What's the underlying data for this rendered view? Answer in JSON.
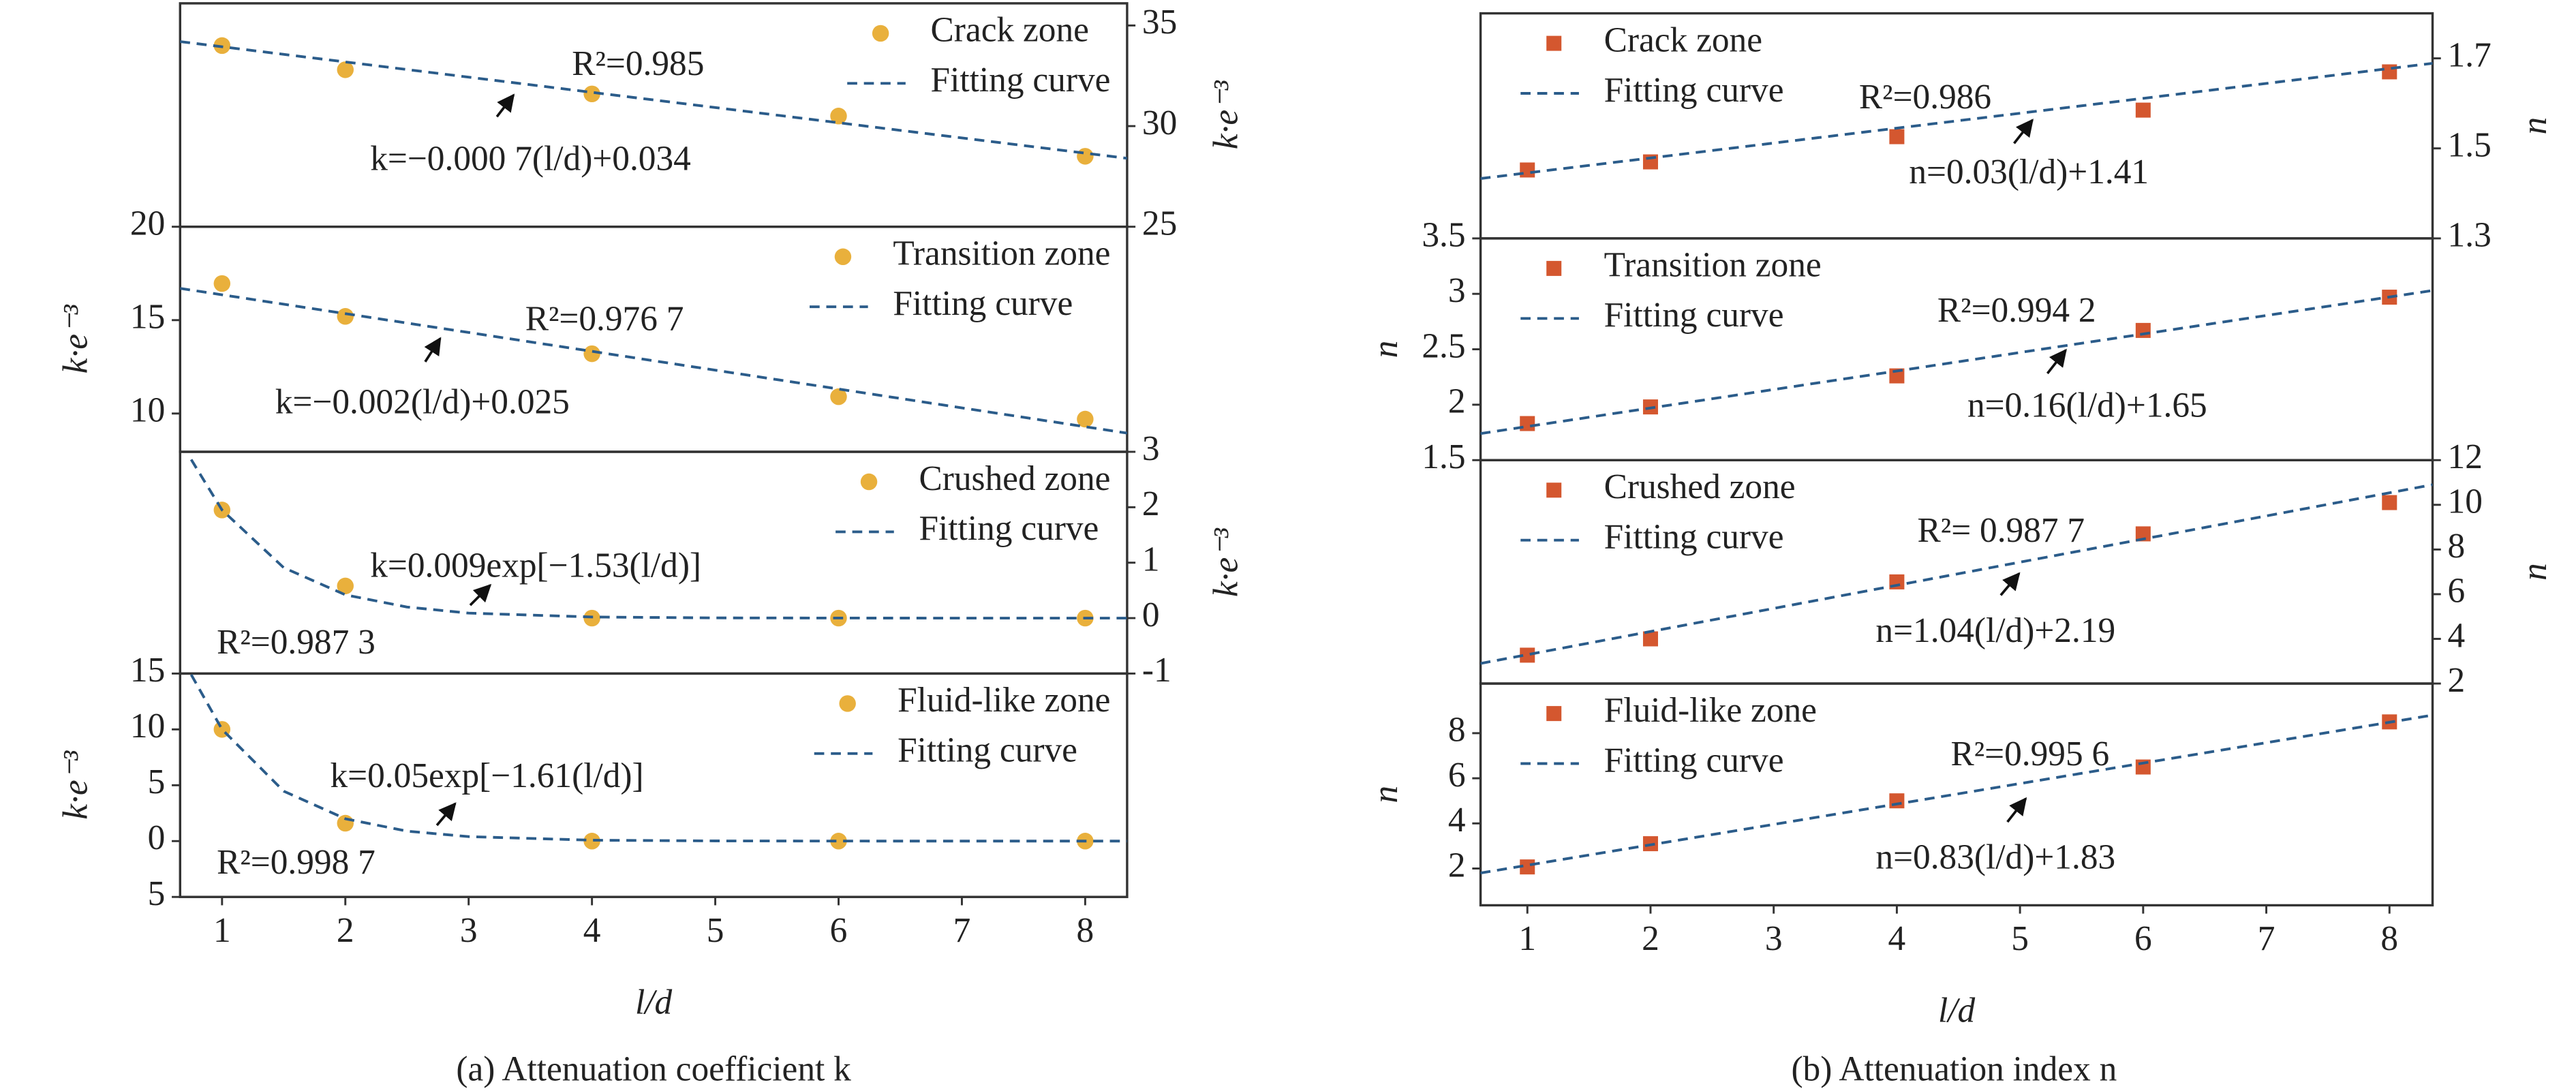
{
  "captions": [
    "(a) Attenuation coefficient k",
    "(b) Attenuation index n"
  ],
  "chart_data": [
    {
      "type": "scatter",
      "legend": "upper right",
      "y_side": "right",
      "ylabel": "k·e⁻³",
      "xlim": [
        0.66,
        8.34
      ],
      "ylim": [
        25,
        36.1
      ],
      "yticks": [
        25,
        30,
        35
      ],
      "series": [
        {
          "name": "Crack zone",
          "color": "#e9b03c",
          "marker": "circle",
          "x": [
            1,
            2,
            4,
            6,
            8
          ],
          "values": [
            34.0,
            32.8,
            31.6,
            30.5,
            28.5
          ]
        },
        {
          "name": "Fitting curve",
          "color": "#2b5c8a",
          "style": "dashed",
          "x": [
            0.66,
            8.34
          ],
          "values": [
            34.2,
            28.4
          ]
        }
      ],
      "annotations": [
        "R²=0.985",
        "k=−0.000 7(l/d)+0.034"
      ]
    },
    {
      "type": "scatter",
      "legend": "upper right",
      "y_side": "left",
      "ylabel": "k·e⁻³",
      "xlim": [
        0.66,
        8.34
      ],
      "ylim": [
        7.95,
        20
      ],
      "yticks": [
        10,
        15,
        20
      ],
      "series": [
        {
          "name": "Transition zone",
          "color": "#e9b03c",
          "marker": "circle",
          "x": [
            1,
            2,
            4,
            6,
            8
          ],
          "values": [
            16.96,
            15.2,
            13.2,
            10.9,
            9.7
          ]
        },
        {
          "name": "Fitting curve",
          "color": "#2b5c8a",
          "style": "dashed",
          "x": [
            0.66,
            8.34
          ],
          "values": [
            16.7,
            8.95
          ]
        }
      ],
      "annotations": [
        "R²=0.976 7",
        "k=−0.002(l/d)+0.025"
      ]
    },
    {
      "type": "scatter",
      "legend": "upper right",
      "y_side": "right",
      "ylabel": "k·e⁻³",
      "xlim": [
        0.66,
        8.34
      ],
      "ylim": [
        -1,
        3
      ],
      "yticks": [
        -1,
        0,
        1,
        2,
        3
      ],
      "series": [
        {
          "name": "Crushed zone",
          "color": "#e9b03c",
          "marker": "circle",
          "x": [
            1,
            2,
            4,
            6,
            8
          ],
          "values": [
            1.95,
            0.58,
            0,
            0,
            0
          ]
        },
        {
          "name": "Fitting curve",
          "color": "#2b5c8a",
          "style": "dashed",
          "x": [
            0.75,
            1,
            1.5,
            2,
            2.5,
            3,
            4,
            5,
            6,
            7,
            8,
            8.34
          ],
          "values": [
            2.86,
            1.95,
            0.91,
            0.42,
            0.2,
            0.09,
            0.02,
            0.004,
            0.001,
            0,
            0,
            0
          ]
        }
      ],
      "annotations": [
        "k=0.009exp[−1.53(l/d)]",
        "R²=0.987 3"
      ]
    },
    {
      "type": "scatter",
      "legend": "upper right",
      "y_side": "left",
      "ylabel": "k·e⁻³",
      "xlim": [
        0.66,
        8.34
      ],
      "ylim": [
        -5,
        15
      ],
      "yticks": [
        {
          "value": -5,
          "label": "5"
        },
        0,
        5,
        10,
        15
      ],
      "xticks": [
        1,
        2,
        3,
        4,
        5,
        6,
        7,
        8
      ],
      "xlabel": "l/d",
      "series": [
        {
          "name": "Fluid-like zone",
          "color": "#e9b03c",
          "marker": "circle",
          "x": [
            1,
            2,
            4,
            6,
            8
          ],
          "values": [
            10,
            1.6,
            0,
            0,
            0
          ]
        },
        {
          "name": "Fitting curve",
          "color": "#2b5c8a",
          "style": "dashed",
          "x": [
            0.75,
            1,
            1.5,
            2,
            2.5,
            3,
            4,
            5,
            6,
            7,
            8,
            8.34
          ],
          "values": [
            14.9,
            10,
            4.47,
            2.0,
            0.89,
            0.4,
            0.08,
            0.016,
            0.003,
            0,
            0,
            0
          ]
        }
      ],
      "annotations": [
        "k=0.05exp[−1.61(l/d)]",
        "R²=0.998 7"
      ]
    },
    {
      "type": "scatter",
      "legend": "upper left",
      "y_side": "right",
      "ylabel": "n",
      "xlim": [
        0.62,
        8.35
      ],
      "ylim": [
        1.3,
        1.8
      ],
      "yticks": [
        1.3,
        1.5,
        1.7
      ],
      "series": [
        {
          "name": "Crack zone",
          "color": "#d4572f",
          "marker": "square",
          "x": [
            1,
            2,
            4,
            6,
            8
          ],
          "values": [
            1.452,
            1.47,
            1.526,
            1.585,
            1.67
          ]
        },
        {
          "name": "Fitting curve",
          "color": "#2b5c8a",
          "style": "dashed",
          "x": [
            0.62,
            8.35
          ],
          "values": [
            1.433,
            1.689
          ]
        }
      ],
      "annotations": [
        "R²=0.986",
        "n=0.03(l/d)+1.41"
      ]
    },
    {
      "type": "scatter",
      "legend": "upper left",
      "y_side": "left",
      "ylabel": "n",
      "xlim": [
        0.62,
        8.35
      ],
      "ylim": [
        1.5,
        3.5
      ],
      "yticks": [
        1.5,
        2,
        2.5,
        3,
        3.5
      ],
      "series": [
        {
          "name": "Transition zone",
          "color": "#d4572f",
          "marker": "square",
          "x": [
            1,
            2,
            4,
            6,
            8
          ],
          "values": [
            1.83,
            1.98,
            2.26,
            2.67,
            2.97
          ]
        },
        {
          "name": "Fitting curve",
          "color": "#2b5c8a",
          "style": "dashed",
          "x": [
            0.62,
            8.35
          ],
          "values": [
            1.74,
            3.03
          ]
        }
      ],
      "annotations": [
        "R²=0.994 2",
        "n=0.16(l/d)+1.65"
      ]
    },
    {
      "type": "scatter",
      "legend": "upper left",
      "y_side": "right",
      "ylabel": "n",
      "xlim": [
        0.62,
        8.35
      ],
      "ylim": [
        2,
        12
      ],
      "yticks": [
        2,
        4,
        6,
        8,
        10,
        12
      ],
      "series": [
        {
          "name": "Crushed zone",
          "color": "#d4572f",
          "marker": "square",
          "x": [
            1,
            2,
            4,
            6,
            8
          ],
          "values": [
            3.27,
            4.0,
            6.55,
            8.7,
            10.1
          ]
        },
        {
          "name": "Fitting curve",
          "color": "#2b5c8a",
          "style": "dashed",
          "x": [
            0.62,
            8.35
          ],
          "values": [
            2.9,
            10.9
          ]
        }
      ],
      "annotations": [
        "R²= 0.987 7",
        "n=1.04(l/d)+2.19"
      ]
    },
    {
      "type": "scatter",
      "legend": "upper left",
      "y_side": "left",
      "ylabel": "n",
      "xlim": [
        0.62,
        8.35
      ],
      "ylim": [
        0.37,
        10.2
      ],
      "yticks": [
        2,
        4,
        6,
        8
      ],
      "xticks": [
        1,
        2,
        3,
        4,
        5,
        6,
        7,
        8
      ],
      "xlabel": "l/d",
      "series": [
        {
          "name": "Fluid-like zone",
          "color": "#d4572f",
          "marker": "square",
          "x": [
            1,
            2,
            4,
            6,
            8
          ],
          "values": [
            2.07,
            3.1,
            5.0,
            6.5,
            8.5
          ]
        },
        {
          "name": "Fitting curve",
          "color": "#2b5c8a",
          "style": "dashed",
          "x": [
            0.62,
            8.35
          ],
          "values": [
            1.8,
            8.8
          ]
        }
      ],
      "annotations": [
        "R²=0.995 6",
        "n=0.83(l/d)+1.83"
      ]
    }
  ]
}
